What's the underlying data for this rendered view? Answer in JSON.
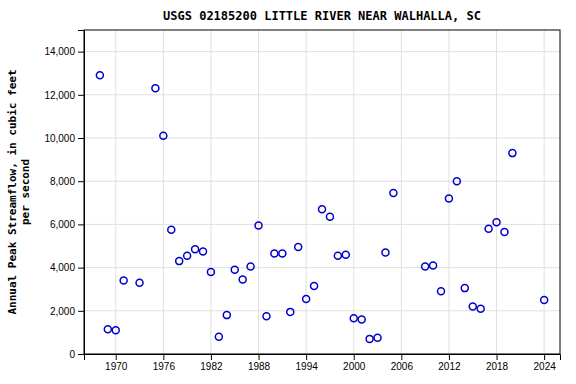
{
  "chart_data": {
    "type": "scatter",
    "title": "USGS 02185200 LITTLE RIVER NEAR WALHALLA, SC",
    "y_label": "Annual Peak Streamflow, in cubic feet\nper second",
    "x": [
      1968,
      1969,
      1970,
      1971,
      1973,
      1975,
      1976,
      1977,
      1978,
      1979,
      1980,
      1981,
      1982,
      1983,
      1984,
      1985,
      1986,
      1987,
      1988,
      1989,
      1990,
      1991,
      1992,
      1993,
      1994,
      1995,
      1996,
      1997,
      1998,
      1999,
      2000,
      2001,
      2002,
      2003,
      2004,
      2005,
      2009,
      2010,
      2011,
      2012,
      2013,
      2014,
      2015,
      2016,
      2017,
      2018,
      2019,
      2020,
      2024
    ],
    "values": [
      12900,
      1150,
      1100,
      3400,
      3300,
      12300,
      10100,
      5750,
      4300,
      4550,
      4850,
      4750,
      3800,
      800,
      1800,
      3900,
      3450,
      4050,
      5950,
      1750,
      4650,
      4650,
      1950,
      4950,
      2550,
      3150,
      6700,
      6350,
      4550,
      4600,
      1650,
      1600,
      700,
      750,
      4700,
      7450,
      4050,
      4100,
      2900,
      7200,
      8000,
      3050,
      2200,
      2100,
      5800,
      6100,
      5650,
      9300,
      2500
    ],
    "color": "#0000cc",
    "marker": "circle",
    "xlim": [
      1966,
      2026
    ],
    "ylim": [
      0,
      15000
    ],
    "xticks": [
      1970,
      1976,
      1982,
      1988,
      1994,
      2000,
      2006,
      2012,
      2018,
      2024
    ],
    "yticks": [
      0,
      {
        "value": 2000,
        "label": "2,000"
      },
      {
        "value": 4000,
        "label": "4,000"
      },
      {
        "value": 6000,
        "label": "6,000"
      },
      {
        "value": 8000,
        "label": "8,000"
      },
      {
        "value": 10000,
        "label": "10,000"
      },
      {
        "value": 12000,
        "label": "12,000"
      },
      {
        "value": 14000,
        "label": "14,000"
      }
    ],
    "grid": true
  }
}
